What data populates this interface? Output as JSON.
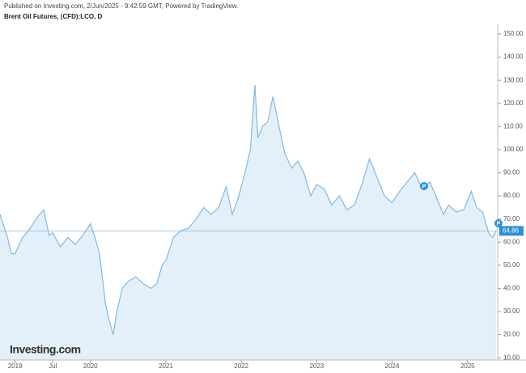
{
  "chart_data": {
    "type": "area",
    "subtitle": "Published on Investing.com, 2/Jun/2025 - 9:42:59 GMT, Powered by TradingView.",
    "title": "Brent Oil Futures, (CFD):LCO, D",
    "watermark": "Investing.com",
    "x": [
      2018.8,
      2018.9,
      2018.95,
      2019.0,
      2019.1,
      2019.2,
      2019.3,
      2019.38,
      2019.45,
      2019.5,
      2019.6,
      2019.7,
      2019.8,
      2019.9,
      2020.0,
      2020.05,
      2020.12,
      2020.2,
      2020.25,
      2020.3,
      2020.35,
      2020.42,
      2020.5,
      2020.6,
      2020.7,
      2020.8,
      2020.88,
      2020.95,
      2021.0,
      2021.1,
      2021.2,
      2021.3,
      2021.4,
      2021.5,
      2021.6,
      2021.7,
      2021.8,
      2021.88,
      2021.95,
      2022.05,
      2022.12,
      2022.18,
      2022.22,
      2022.28,
      2022.35,
      2022.42,
      2022.5,
      2022.58,
      2022.67,
      2022.75,
      2022.83,
      2022.92,
      2023.0,
      2023.1,
      2023.2,
      2023.3,
      2023.4,
      2023.5,
      2023.6,
      2023.7,
      2023.8,
      2023.9,
      2024.0,
      2024.1,
      2024.2,
      2024.3,
      2024.4,
      2024.5,
      2024.58,
      2024.68,
      2024.75,
      2024.85,
      2024.95,
      2025.05,
      2025.12,
      2025.2,
      2025.28,
      2025.33,
      2025.38
    ],
    "series": [
      {
        "name": "LCO",
        "color": "#84b8e0",
        "fill": "#e3f0fa",
        "values": [
          72,
          62,
          55,
          55,
          62,
          66,
          71,
          74,
          63,
          64,
          58,
          62,
          59,
          63,
          68,
          63,
          55,
          33,
          26,
          20,
          30,
          40,
          43,
          45,
          42,
          40,
          42,
          50,
          52,
          62,
          65,
          66,
          70,
          75,
          72,
          75,
          84,
          72,
          78,
          90,
          100,
          128,
          105,
          110,
          112,
          123,
          110,
          98,
          92,
          95,
          90,
          80,
          85,
          83,
          76,
          80,
          74,
          76,
          85,
          96,
          88,
          80,
          77,
          82,
          86,
          90,
          83,
          86,
          80,
          72,
          76,
          73,
          74,
          82,
          75,
          73,
          64,
          62,
          64.86
        ]
      }
    ],
    "xlim": [
      2018.8,
      2025.4
    ],
    "xticks": [
      2019,
      {
        "value": 2019.5,
        "label": "Jul"
      },
      2020,
      2021,
      2022,
      2023,
      2024,
      2025
    ],
    "ylim": [
      9,
      154.2
    ],
    "yticks": [
      {
        "value": 10,
        "label": "10.00"
      },
      {
        "value": 20,
        "label": "20.00"
      },
      {
        "value": 30,
        "label": "30.00"
      },
      {
        "value": 40,
        "label": "40.00"
      },
      {
        "value": 50,
        "label": "50.00"
      },
      {
        "value": 60,
        "label": "60.00"
      },
      {
        "value": 70,
        "label": "70.00"
      },
      {
        "value": 80,
        "label": "80.00"
      },
      {
        "value": 90,
        "label": "90.00"
      },
      {
        "value": 100,
        "label": "100.00"
      },
      {
        "value": 110,
        "label": "110.00"
      },
      {
        "value": 120,
        "label": "120.00"
      },
      {
        "value": 130,
        "label": "130.00"
      },
      {
        "value": 140,
        "label": "140.00"
      },
      {
        "value": 150,
        "label": "150.00"
      }
    ]
  }
}
